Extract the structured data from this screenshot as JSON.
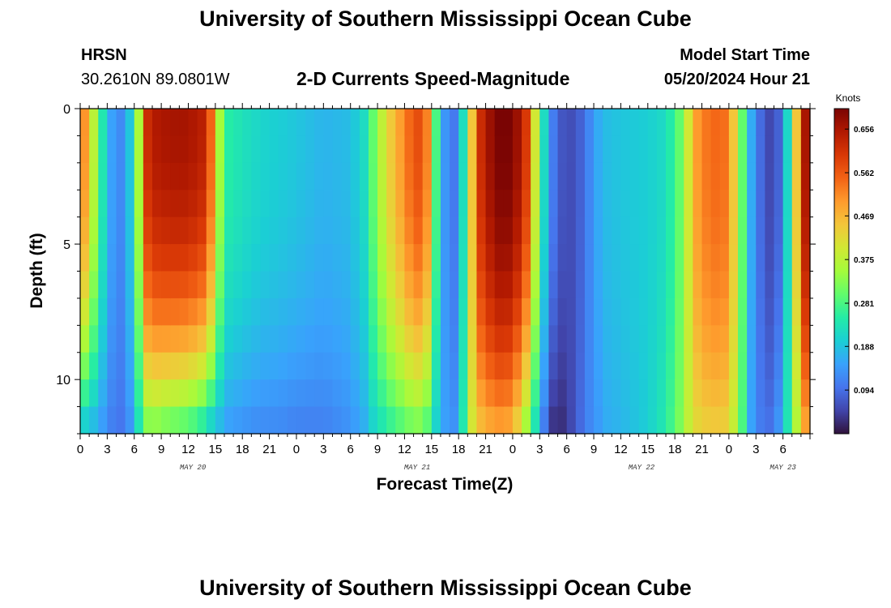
{
  "header": {
    "title": "University of Southern Mississippi Ocean Cube",
    "station": "HRSN",
    "location": "30.2610N  89.0801W",
    "subtitle": "2-D Currents Speed-Magnitude",
    "model_start_label": "Model Start Time",
    "model_start_value": "05/20/2024 Hour 21"
  },
  "footer": {
    "title": "University of Southern Mississippi Ocean Cube"
  },
  "colors": {
    "colormap": [
      "#30123b",
      "#4145ab",
      "#4675ed",
      "#39a2fc",
      "#1bcfd4",
      "#24eca6",
      "#61fc6c",
      "#a4fc3b",
      "#d1e834",
      "#f3c63a",
      "#fe9b2d",
      "#f36315",
      "#d93806",
      "#b11901",
      "#7a0403"
    ]
  },
  "chart_data": {
    "type": "heatmap",
    "title": "2-D Currents Speed-Magnitude",
    "xlabel": "Forecast Time(Z)",
    "ylabel": "Depth (ft)",
    "xlim": [
      0,
      81
    ],
    "ylim": [
      12,
      0
    ],
    "x_ticks": [
      0,
      3,
      6,
      9,
      12,
      15,
      18,
      21,
      24,
      27,
      30,
      33,
      36,
      39,
      42,
      45,
      48,
      51,
      54,
      57,
      60,
      63,
      66,
      69,
      72,
      75,
      78,
      81
    ],
    "x_tick_labels": [
      "0",
      "3",
      "6",
      "9",
      "12",
      "15",
      "18",
      "21",
      "0",
      "3",
      "6",
      "9",
      "12",
      "15",
      "18",
      "21",
      "0",
      "3",
      "6",
      "9",
      "12",
      "15",
      "18",
      "21",
      "0",
      "3",
      "6"
    ],
    "y_ticks": [
      0,
      5,
      10
    ],
    "y_tick_labels": [
      "0",
      "5",
      "10"
    ],
    "date_labels": [
      {
        "text": "MAY 20",
        "hour": 12.5
      },
      {
        "text": "MAY 21",
        "hour": 37.4
      },
      {
        "text": "MAY 22",
        "hour": 62.3
      },
      {
        "text": "MAY 23",
        "hour": 78
      }
    ],
    "colorbar": {
      "label": "Knots",
      "ticks": [
        "0.656",
        "0.562",
        "0.469",
        "0.375",
        "0.281",
        "0.188",
        "0.094"
      ],
      "tick_values": [
        0.656,
        0.562,
        0.469,
        0.375,
        0.281,
        0.188,
        0.094
      ],
      "range": [
        0.0,
        0.7
      ]
    },
    "profile_hours": [
      0,
      1,
      2,
      3,
      4,
      5,
      6,
      6.8,
      7.5,
      8.5,
      10,
      12,
      13.5,
      14.5,
      15.5,
      16.5,
      18,
      20,
      22,
      24,
      27,
      30,
      31.5,
      32.5,
      34,
      36,
      37,
      38,
      38.7,
      39.5,
      40.3,
      41,
      42,
      42.8,
      43.5,
      44.5,
      45.5,
      46.5,
      47.8,
      48.5,
      49.5,
      50.5,
      51.5,
      52.3,
      53,
      53.8,
      54.7,
      55.5,
      56.5,
      57.5,
      58.5,
      60,
      63,
      65,
      66.5,
      67.5,
      68.5,
      70,
      71.5,
      72.5,
      73.5,
      74,
      75,
      76,
      76.8,
      77.5,
      78.2,
      79,
      80,
      80.7,
      81
    ],
    "surface_speed": [
      0.56,
      0.45,
      0.3,
      0.18,
      0.12,
      0.13,
      0.25,
      0.42,
      0.62,
      0.65,
      0.66,
      0.66,
      0.64,
      0.55,
      0.35,
      0.25,
      0.23,
      0.21,
      0.2,
      0.19,
      0.17,
      0.18,
      0.22,
      0.3,
      0.42,
      0.52,
      0.57,
      0.58,
      0.5,
      0.28,
      0.16,
      0.08,
      0.13,
      0.28,
      0.45,
      0.62,
      0.67,
      0.7,
      0.7,
      0.67,
      0.6,
      0.4,
      0.22,
      0.12,
      0.08,
      0.06,
      0.06,
      0.08,
      0.12,
      0.16,
      0.18,
      0.19,
      0.2,
      0.22,
      0.3,
      0.4,
      0.5,
      0.55,
      0.54,
      0.45,
      0.3,
      0.2,
      0.12,
      0.06,
      0.05,
      0.08,
      0.16,
      0.3,
      0.6,
      0.68,
      0.66
    ],
    "bottom_speed": [
      0.18,
      0.17,
      0.15,
      0.12,
      0.1,
      0.1,
      0.16,
      0.26,
      0.3,
      0.3,
      0.28,
      0.26,
      0.22,
      0.18,
      0.16,
      0.14,
      0.13,
      0.12,
      0.12,
      0.11,
      0.11,
      0.13,
      0.16,
      0.2,
      0.24,
      0.28,
      0.3,
      0.3,
      0.26,
      0.2,
      0.16,
      0.12,
      0.15,
      0.3,
      0.4,
      0.45,
      0.47,
      0.48,
      0.47,
      0.42,
      0.33,
      0.22,
      0.1,
      0.03,
      0.02,
      0.03,
      0.06,
      0.09,
      0.12,
      0.14,
      0.16,
      0.17,
      0.2,
      0.25,
      0.32,
      0.38,
      0.42,
      0.44,
      0.43,
      0.38,
      0.28,
      0.18,
      0.12,
      0.1,
      0.1,
      0.14,
      0.2,
      0.3,
      0.42,
      0.5,
      0.5
    ]
  }
}
